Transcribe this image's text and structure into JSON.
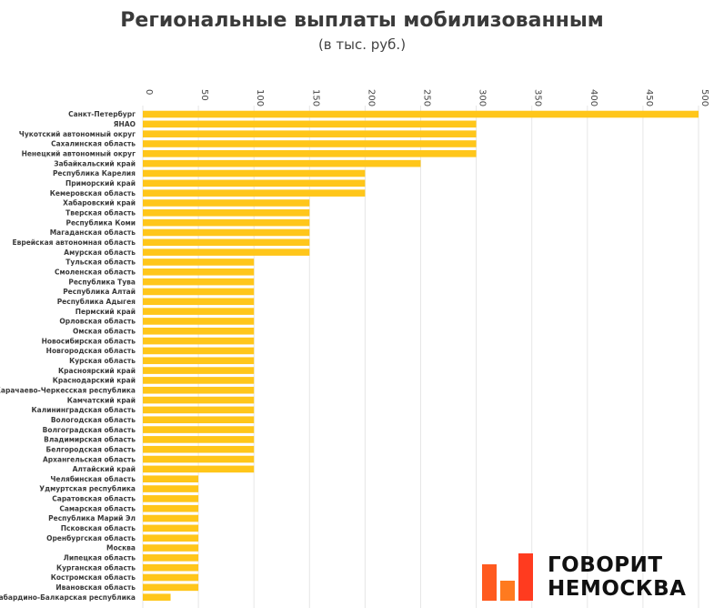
{
  "title": "Региональные выплаты мобилизованным",
  "subtitle": "(в тыс. руб.)",
  "brand": {
    "line1": "ГОВОРИТ",
    "line2": "НЕМОСКВА",
    "colors": [
      "#ff5a1f",
      "#ff7a1f",
      "#ff3b1f"
    ]
  },
  "colors": {
    "bar": "#ffc61a",
    "grid": "#e6e6e6"
  },
  "chart_data": {
    "type": "bar",
    "orientation": "horizontal",
    "title": "Региональные выплаты мобилизованным",
    "subtitle": "(в тыс. руб.)",
    "xlim": [
      0,
      500
    ],
    "ticks": [
      0,
      50,
      100,
      150,
      200,
      250,
      300,
      350,
      400,
      450,
      500
    ],
    "categories": [
      "Санкт-Петербург",
      "ЯНАО",
      "Чукотский автономный округ",
      "Сахалинская область",
      "Ненецкий автономный округ",
      "Забайкальский край",
      "Республика Карелия",
      "Приморский край",
      "Кемеровская область",
      "Хабаровский край",
      "Тверская область",
      "Республика Коми",
      "Магаданская область",
      "Еврейская автономная область",
      "Амурская область",
      "Тульская область",
      "Смоленская область",
      "Республика Тува",
      "Республика Алтай",
      "Республика Адыгея",
      "Пермский край",
      "Орловская область",
      "Омская область",
      "Новосибирская область",
      "Новгородская область",
      "Курская область",
      "Красноярский край",
      "Краснодарский край",
      "Карачаево-Черкесская республика",
      "Камчатский край",
      "Калининградская область",
      "Вологодская область",
      "Волгоградская область",
      "Владимирская область",
      "Белгородская область",
      "Архангельская область",
      "Алтайский край",
      "Челябинская область",
      "Удмуртская республика",
      "Саратовская область",
      "Самарская область",
      "Республика Марий Эл",
      "Псковская область",
      "Оренбургская область",
      "Москва",
      "Липецкая область",
      "Курганская область",
      "Костромская область",
      "Ивановская область",
      "Кабардино-Балкарская республика"
    ],
    "values": [
      500,
      300,
      300,
      300,
      300,
      250,
      200,
      200,
      200,
      150,
      150,
      150,
      150,
      150,
      150,
      100,
      100,
      100,
      100,
      100,
      100,
      100,
      100,
      100,
      100,
      100,
      100,
      100,
      100,
      100,
      100,
      100,
      100,
      100,
      100,
      100,
      100,
      50,
      50,
      50,
      50,
      50,
      50,
      50,
      50,
      50,
      50,
      50,
      50,
      25
    ]
  }
}
